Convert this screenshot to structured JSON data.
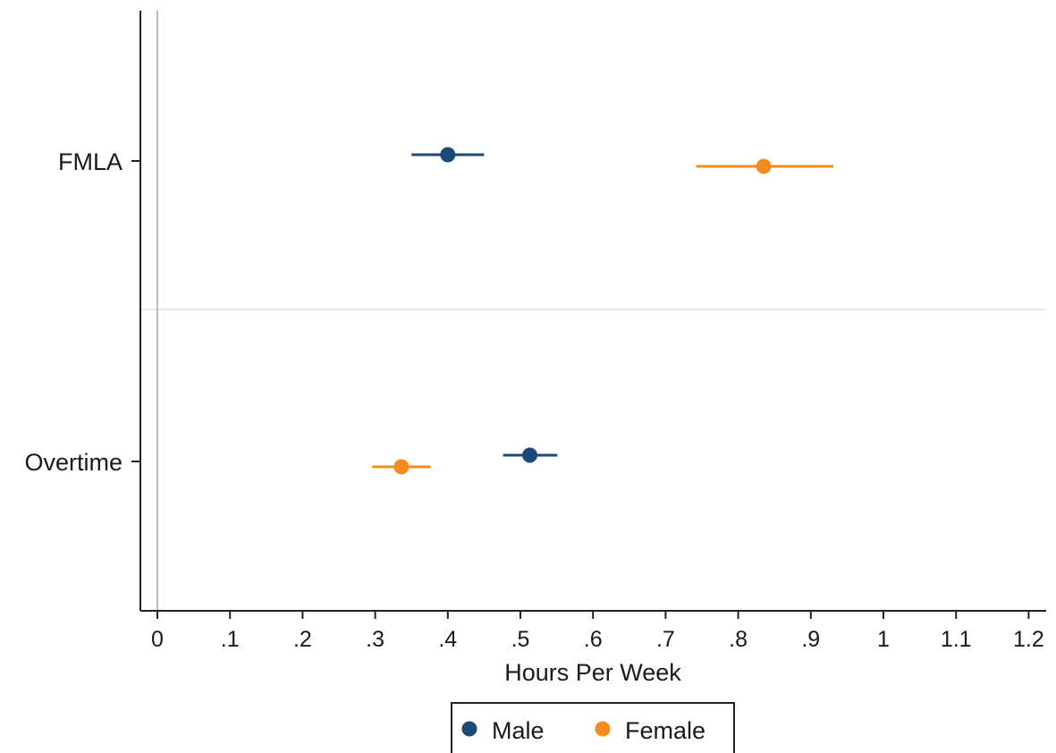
{
  "chart_data": {
    "type": "scatter",
    "subtype": "coefficient-plot-with-confidence-intervals",
    "xlabel": "Hours Per Week",
    "ylabel": "",
    "xlim": [
      -0.02,
      1.22
    ],
    "x_ticks": [
      {
        "value": 0,
        "label": "0"
      },
      {
        "value": 0.1,
        "label": ".1"
      },
      {
        "value": 0.2,
        "label": ".2"
      },
      {
        "value": 0.3,
        "label": ".3"
      },
      {
        "value": 0.4,
        "label": ".4"
      },
      {
        "value": 0.5,
        "label": ".5"
      },
      {
        "value": 0.6,
        "label": ".6"
      },
      {
        "value": 0.7,
        "label": ".7"
      },
      {
        "value": 0.8,
        "label": ".8"
      },
      {
        "value": 0.9,
        "label": ".9"
      },
      {
        "value": 1.0,
        "label": "1"
      },
      {
        "value": 1.1,
        "label": "1.1"
      },
      {
        "value": 1.2,
        "label": "1.2"
      }
    ],
    "categories": [
      "FMLA",
      "Overtime"
    ],
    "reference_line_x": 0,
    "grid": false,
    "legend_position": "bottom",
    "series": [
      {
        "name": "Male",
        "color": "#1c4a78",
        "points": [
          {
            "category": "FMLA",
            "estimate": 0.4,
            "ci_low": 0.35,
            "ci_high": 0.45
          },
          {
            "category": "Overtime",
            "estimate": 0.513,
            "ci_low": 0.476,
            "ci_high": 0.551
          }
        ]
      },
      {
        "name": "Female",
        "color": "#f58a1f",
        "points": [
          {
            "category": "FMLA",
            "estimate": 0.835,
            "ci_low": 0.742,
            "ci_high": 0.931
          },
          {
            "category": "Overtime",
            "estimate": 0.336,
            "ci_low": 0.296,
            "ci_high": 0.376
          }
        ]
      }
    ]
  }
}
